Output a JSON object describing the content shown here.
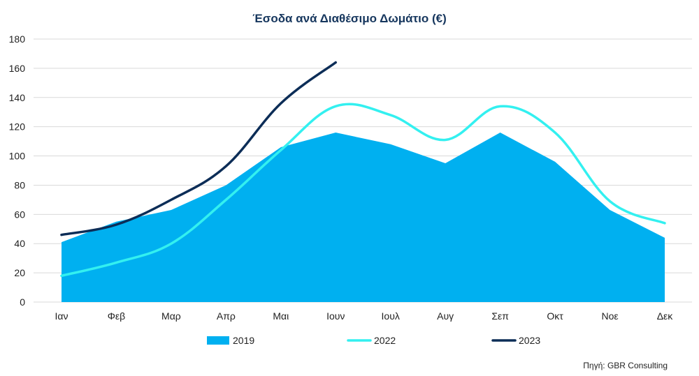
{
  "chart_data": {
    "type": "area",
    "title": "Έσοδα ανά Διαθέσιμο Δωμάτιο (€)",
    "xlabel": "",
    "ylabel": "",
    "categories": [
      "Ιαν",
      "Φεβ",
      "Μαρ",
      "Απρ",
      "Μαι",
      "Ιουν",
      "Ιουλ",
      "Αυγ",
      "Σεπ",
      "Οκτ",
      "Νοε",
      "Δεκ"
    ],
    "ylim": [
      0,
      180
    ],
    "yticks": [
      0,
      20,
      40,
      60,
      80,
      100,
      120,
      140,
      160,
      180
    ],
    "grid": true,
    "legend_position": "bottom",
    "series": [
      {
        "name": "2019",
        "kind": "area",
        "color": "#00b0f0",
        "values": [
          41,
          55,
          63,
          80,
          106,
          116,
          108,
          95,
          116,
          96,
          63,
          44
        ]
      },
      {
        "name": "2022",
        "kind": "line",
        "color": "#33f0f0",
        "values": [
          18,
          27,
          40,
          70,
          104,
          134,
          128,
          111,
          134,
          116,
          69,
          54
        ]
      },
      {
        "name": "2023",
        "kind": "line",
        "color": "#0c2d57",
        "values": [
          46,
          53,
          70,
          93,
          136,
          164,
          null,
          null,
          null,
          null,
          null,
          null
        ]
      }
    ],
    "source": "Πηγή: GBR Consulting"
  }
}
